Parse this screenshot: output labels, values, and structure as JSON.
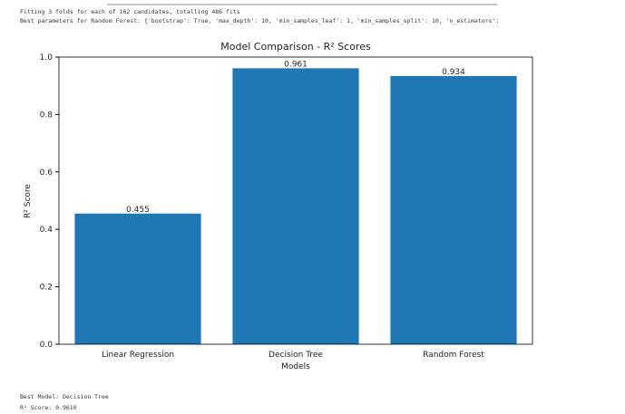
{
  "output_top": [
    "Fitting 3 folds for each of 162 candidates, totalling 486 fits",
    "Best parameters for Random Forest: {'bootstrap': True, 'max_depth': 10, 'min_samples_leaf': 1, 'min_samples_split': 10, 'n_estimators':"
  ],
  "chart_data": {
    "type": "bar",
    "title": "Model Comparison - R² Scores",
    "x_label": "Models",
    "y_label": "R² Score",
    "categories": [
      "Linear Regression",
      "Decision Tree",
      "Random Forest"
    ],
    "values": [
      0.455,
      0.961,
      0.934
    ],
    "color": "#1f77b4",
    "ylim": [
      0,
      1
    ],
    "yticks": [
      {
        "value": 0,
        "label": "0.0"
      },
      0.2,
      0.4,
      0.6,
      0.8,
      {
        "value": 1,
        "label": "1.0"
      }
    ],
    "grid": false
  },
  "output_bottom": [
    "Best Model: Decision Tree",
    "R² Score: 0.9610"
  ]
}
